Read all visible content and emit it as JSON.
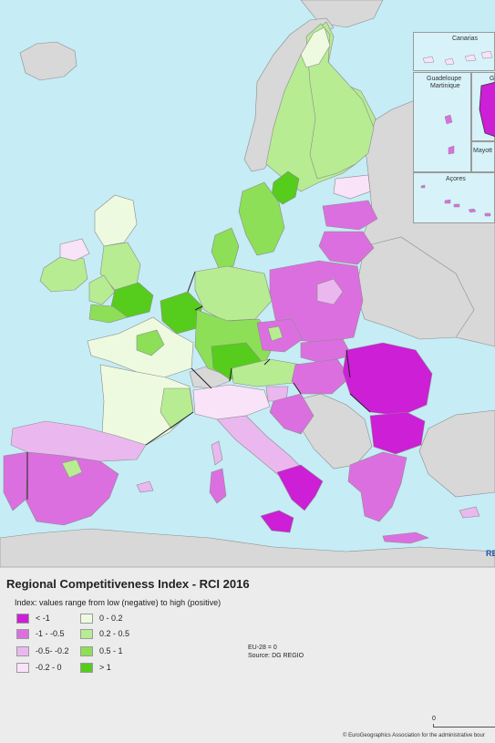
{
  "colors": {
    "sea": "#c6ecf5",
    "non_eu_land": "#d8d8d8",
    "border": "#8c8c8c",
    "country_border": "#222222"
  },
  "legend": {
    "title": "Regional Competitiveness Index - RCI 2016",
    "subtitle": "Index: values range from low (negative) to high (positive)",
    "classes": [
      {
        "label": "< -1",
        "color": "#cc1fd6"
      },
      {
        "label": "-1 - -0.5",
        "color": "#dc6fe0"
      },
      {
        "label": "-0.5- -0.2",
        "color": "#eab8ef"
      },
      {
        "label": "-0.2 - 0",
        "color": "#f8e3f8"
      },
      {
        "label": "0 - 0.2",
        "color": "#eefadf"
      },
      {
        "label": "0.2 - 0.5",
        "color": "#b7ec93"
      },
      {
        "label": "0.5 - 1",
        "color": "#8cdf57"
      },
      {
        "label": "> 1",
        "color": "#56cc1c"
      }
    ]
  },
  "note": {
    "line1": "EU-28 = 0",
    "line2": "Source: DG REGIO"
  },
  "insets": {
    "canarias": "Canarias",
    "guadeloupe": "Guadeloupe",
    "martinique": "Martinique",
    "guyane_partial": "Gu",
    "mayotte_partial": "Mayott",
    "acores": "Açores"
  },
  "map_mark": "RE",
  "scale": {
    "zero": "0"
  },
  "copyright": "© EuroGeographics Association for the administrative bour"
}
